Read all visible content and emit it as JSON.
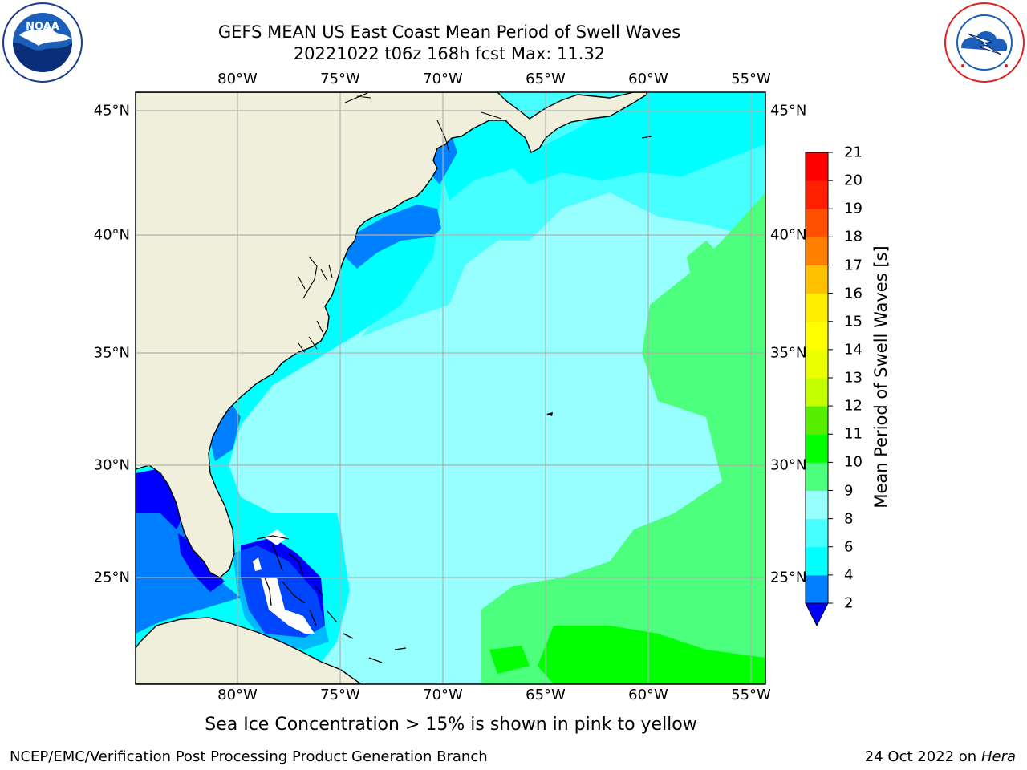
{
  "title": {
    "line1": "GEFS MEAN US East Coast Mean Period of Swell Waves",
    "line2": "20221022 t06z 168h fcst   Max: 11.32"
  },
  "logos": {
    "left": {
      "icon": "noaa-logo",
      "text": "NOAA",
      "ring": "NATIONAL OCEANIC AND ATMOSPHERIC ADMINISTRATION · U.S. DEPARTMENT OF COMMERCE"
    },
    "right": {
      "icon": "nws-logo",
      "ring": "NATIONAL WEATHER SERVICE"
    }
  },
  "map": {
    "lon_labels": [
      "80°W",
      "75°W",
      "70°W",
      "65°W",
      "60°W",
      "55°W"
    ],
    "lat_labels": [
      "45°N",
      "40°N",
      "35°N",
      "30°N",
      "25°N"
    ],
    "land_color": "#efefdc",
    "gridline_color": "#b0b0b0"
  },
  "colorbar": {
    "label": "Mean Period of Swell Waves [s]",
    "ticks": [
      "2",
      "4",
      "6",
      "8",
      "9",
      "10",
      "11",
      "12",
      "13",
      "14",
      "15",
      "16",
      "17",
      "18",
      "19",
      "20",
      "21"
    ],
    "colors": [
      "#0000ff",
      "#0080ff",
      "#00ffff",
      "#48ffff",
      "#98ffff",
      "#4cff7c",
      "#00ff00",
      "#58ee00",
      "#c4ff00",
      "#ecff00",
      "#ffff00",
      "#ffee00",
      "#ffc000",
      "#ff8000",
      "#ff5000",
      "#ff2000",
      "#ff0000"
    ],
    "extend_color": "#0000ff"
  },
  "ice_note": "Sea Ice Concentration > 15% is shown in pink to yellow",
  "footer": {
    "left": "NCEP/EMC/Verification Post Processing Product Generation Branch",
    "date": "24 Oct 2022 on",
    "machine": "Hera"
  }
}
